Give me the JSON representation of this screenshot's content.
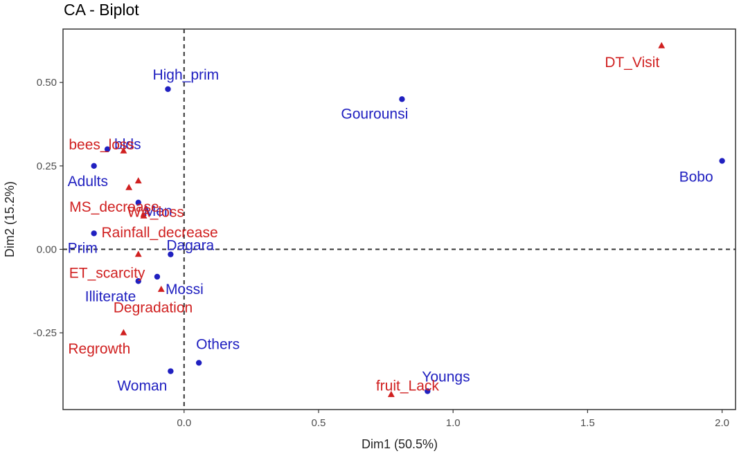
{
  "chart_data": {
    "type": "scatter",
    "title": "CA - Biplot",
    "xlabel": "Dim1 (50.5%)",
    "ylabel": "Dim2 (15.2%)",
    "xlim": [
      -0.45,
      2.05
    ],
    "ylim": [
      -0.48,
      0.66
    ],
    "x_ticks": [
      0.0,
      0.5,
      1.0,
      1.5,
      2.0
    ],
    "x_tick_labels": [
      "0.0",
      "0.5",
      "1.0",
      "1.5",
      "2.0"
    ],
    "y_ticks": [
      -0.25,
      0.0,
      0.25,
      0.5
    ],
    "y_tick_labels": [
      "-0.25",
      "0.00",
      "0.25",
      "0.50"
    ],
    "grid": false,
    "reference_lines": {
      "x": 0,
      "y": 0,
      "style": "dashed"
    },
    "series": [
      {
        "color": "#2020c0",
        "marker": "circle",
        "points": [
          {
            "label": "High_prim",
            "x": -0.06,
            "y": 0.48
          },
          {
            "label": "Gourounsi",
            "x": 0.81,
            "y": 0.45
          },
          {
            "label": "Bobo",
            "x": 2.0,
            "y": 0.265
          },
          {
            "label": "blds",
            "x": -0.285,
            "y": 0.3
          },
          {
            "label": "Adults",
            "x": -0.335,
            "y": 0.25
          },
          {
            "label": "Men",
            "x": -0.17,
            "y": 0.14
          },
          {
            "label": "Prim",
            "x": -0.335,
            "y": 0.048
          },
          {
            "label": "Dagara",
            "x": -0.05,
            "y": -0.015
          },
          {
            "label": "Mossi",
            "x": -0.1,
            "y": -0.082
          },
          {
            "label": "Illiterate",
            "x": -0.17,
            "y": -0.095
          },
          {
            "label": "Others",
            "x": 0.055,
            "y": -0.34
          },
          {
            "label": "Woman",
            "x": -0.05,
            "y": -0.365
          },
          {
            "label": "Youngs",
            "x": 0.905,
            "y": -0.425
          }
        ]
      },
      {
        "color": "#d02020",
        "marker": "triangle",
        "points": [
          {
            "label": "DT_Visit",
            "x": 1.775,
            "y": 0.61
          },
          {
            "label": "bees_loss",
            "x": -0.225,
            "y": 0.295
          },
          {
            "label": "WA_loss",
            "x": -0.17,
            "y": 0.205
          },
          {
            "label": "MS_decrease",
            "x": -0.205,
            "y": 0.185
          },
          {
            "label": "Rainfall_decrease",
            "x": -0.15,
            "y": 0.1
          },
          {
            "label": "ET_scarcity",
            "x": -0.17,
            "y": -0.015
          },
          {
            "label": "Degradation",
            "x": -0.085,
            "y": -0.12
          },
          {
            "label": "Regrowth",
            "x": -0.225,
            "y": -0.25
          },
          {
            "label": "fruit_Lack",
            "x": 0.77,
            "y": -0.435
          }
        ]
      }
    ]
  }
}
